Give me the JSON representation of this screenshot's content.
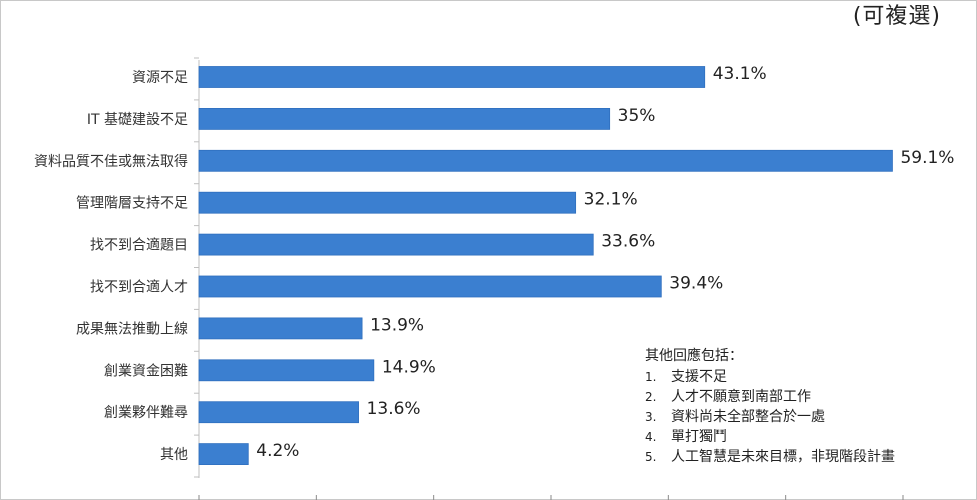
{
  "corner_note": "(可複選)",
  "notes": {
    "title": "其他回應包括：",
    "items": [
      {
        "num": "1.",
        "text": "支援不足"
      },
      {
        "num": "2.",
        "text": "人才不願意到南部工作"
      },
      {
        "num": "3.",
        "text": "資料尚未全部整合於一處"
      },
      {
        "num": "4.",
        "text": "單打獨鬥"
      },
      {
        "num": "5.",
        "text": "人工智慧是未來目標，非現階段計畫"
      }
    ]
  },
  "chart_data": {
    "type": "bar",
    "orientation": "horizontal",
    "categories": [
      "資源不足",
      "IT 基礎建設不足",
      "資料品質不佳或無法取得",
      "管理階層支持不足",
      "找不到合適題目",
      "找不到合適人才",
      "成果無法推動上線",
      "創業資金困難",
      "創業夥伴難尋",
      "其他"
    ],
    "values": [
      43.1,
      35,
      59.1,
      32.1,
      33.6,
      39.4,
      13.9,
      14.9,
      13.6,
      4.2
    ],
    "value_labels": [
      "43.1%",
      "35%",
      "59.1%",
      "32.1%",
      "33.6%",
      "39.4%",
      "13.9%",
      "14.9%",
      "13.6%",
      "4.2%"
    ],
    "xlim": [
      0,
      60
    ],
    "bar_color": "#3b7fd0",
    "grid": false
  }
}
